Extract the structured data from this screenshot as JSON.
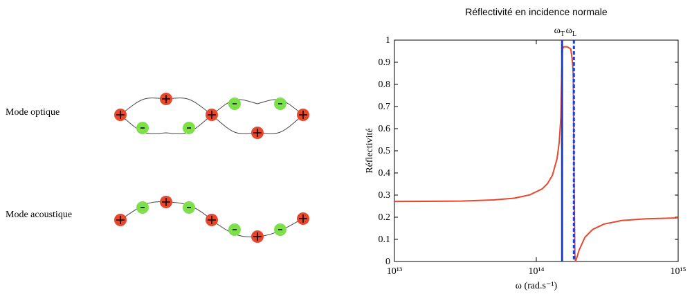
{
  "diagram": {
    "modes": [
      {
        "label": "Mode optique"
      },
      {
        "label": "Mode acoustique"
      }
    ]
  },
  "chart_data": {
    "type": "line",
    "title": "Réflectivité en incidence normale",
    "x_label": "ω (rad.s⁻¹)",
    "y_label": "Réflectivité",
    "log_x": true,
    "xlim": [
      10000000000000.0,
      1000000000000000.0
    ],
    "xticks": [
      {
        "value": 10000000000000.0,
        "label": "10¹³"
      },
      {
        "value": 100000000000000.0,
        "label": "10¹⁴"
      },
      {
        "value": 1000000000000000.0,
        "label": "10¹⁵"
      }
    ],
    "ylim": [
      0,
      1
    ],
    "yticks": [
      0,
      0.1,
      0.2,
      0.3,
      0.4,
      0.5,
      0.6,
      0.7,
      0.8,
      0.9,
      1
    ],
    "x": [
      10000000000000.0,
      30000000000000.0,
      50000000000000.0,
      70000000000000.0,
      90000000000000.0,
      110000000000000.0,
      120000000000000.0,
      130000000000000.0,
      140000000000000.0,
      145000000000000.0,
      149000000000000.0,
      151000000000000.0,
      153000000000000.0,
      156000000000000.0,
      165000000000000.0,
      175000000000000.0,
      180000000000000.0,
      182000000000000.0,
      185000000000000.0,
      187000000000000.0,
      189000000000000.0,
      195000000000000.0,
      200000000000000.0,
      220000000000000.0,
      250000000000000.0,
      300000000000000.0,
      400000000000000.0,
      600000000000000.0,
      1000000000000000.0
    ],
    "series": [
      {
        "name": "Réflectivité",
        "color": "#e8472b",
        "values": [
          0.271,
          0.273,
          0.278,
          0.286,
          0.301,
          0.328,
          0.352,
          0.39,
          0.464,
          0.538,
          0.653,
          0.85,
          0.96,
          0.97,
          0.97,
          0.96,
          0.9,
          0.85,
          0.3,
          0.03,
          0,
          0.026,
          0.05,
          0.109,
          0.145,
          0.169,
          0.185,
          0.193,
          0.197
        ]
      }
    ],
    "annotations": [
      {
        "text": "ω",
        "sub": "T",
        "x": 152000000000000.0,
        "style": "solid",
        "color": "#1f3fd0"
      },
      {
        "text": "ω",
        "sub": "L",
        "x": 184000000000000.0,
        "style": "dashed",
        "color": "#1f3fd0"
      }
    ]
  }
}
